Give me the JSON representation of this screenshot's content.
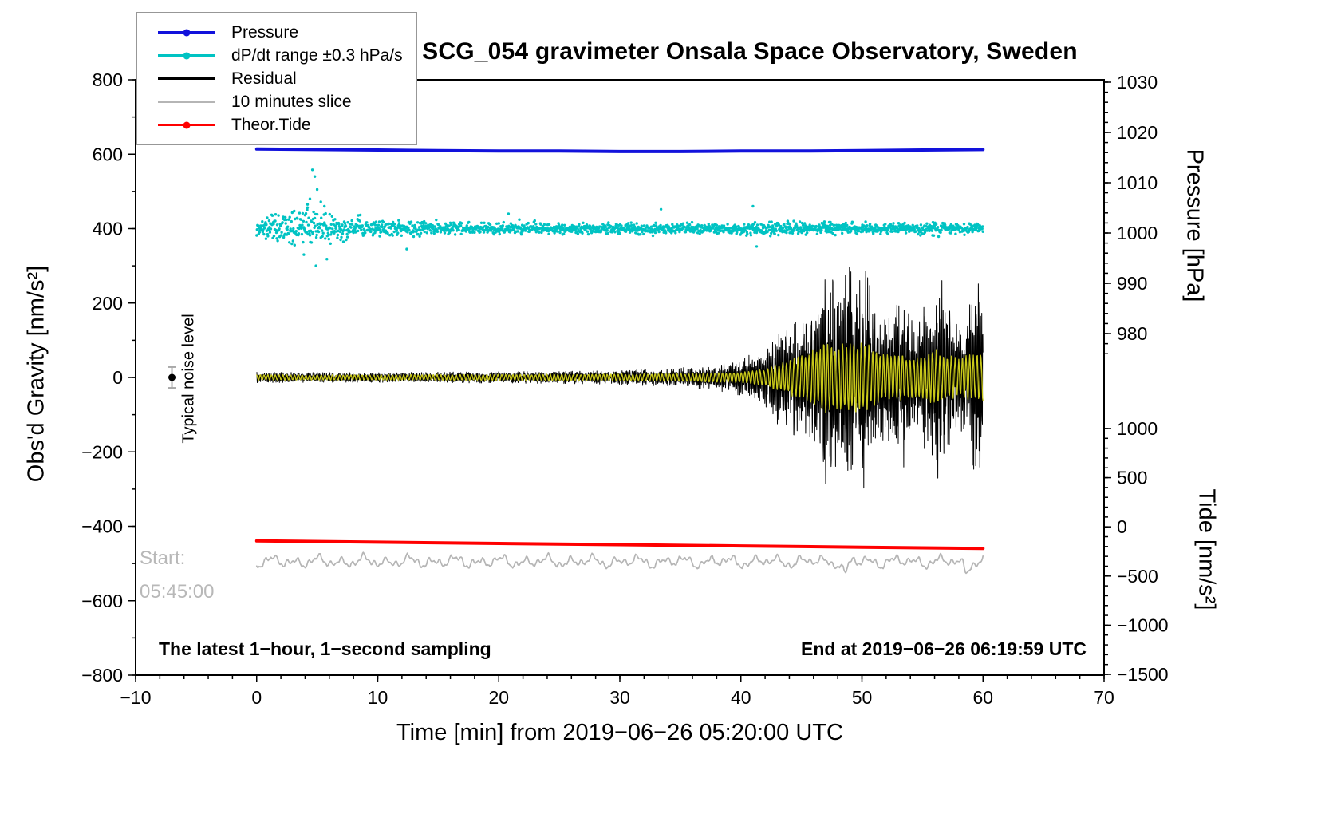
{
  "title": "SCG_054 gravimeter Onsala Space Observatory, Sweden",
  "annotations": {
    "noise_label": "Typical noise level",
    "start_label": "Start:",
    "start_time": "05:45:00",
    "sampling_note": "The latest 1−hour, 1−second sampling",
    "end_note": "End at 2019−06−26 06:19:59 UTC"
  },
  "axes": {
    "x": {
      "label": "Time [min] from 2019−06−26 05:20:00 UTC",
      "min": -10,
      "max": 70,
      "major_ticks": [
        -10,
        0,
        10,
        20,
        30,
        40,
        50,
        60,
        70
      ],
      "minor_step": 2
    },
    "y_left": {
      "label": "Obs'd Gravity [nm/s²]",
      "min": -800,
      "max": 800,
      "major_ticks": [
        -800,
        -600,
        -400,
        -200,
        0,
        200,
        400,
        600,
        800
      ],
      "minor_step": 100
    },
    "y_right_pressure": {
      "label": "Pressure [hPa]",
      "major_ticks": [
        980,
        990,
        1000,
        1010,
        1020,
        1030
      ],
      "minor_step": 2,
      "minor_range": [
        976,
        1030
      ]
    },
    "y_right_tide": {
      "label": "Tide [nm/s²]",
      "major_ticks": [
        -1500,
        -1000,
        -500,
        0,
        500,
        1000
      ],
      "minor_step": 100
    }
  },
  "legend": {
    "items": [
      {
        "label": "Pressure",
        "color": "#1212dc",
        "marker": "line-dot"
      },
      {
        "label": "dP/dt range ±0.3 hPa/s",
        "color": "#00c3c3",
        "marker": "line-dot"
      },
      {
        "label": "Residual",
        "color": "#000000",
        "marker": "line"
      },
      {
        "label": "10 minutes slice",
        "color": "#b5b5b5",
        "marker": "line"
      },
      {
        "label": "Theor.Tide",
        "color": "#ff0000",
        "marker": "line-dot"
      }
    ]
  },
  "chart_data": {
    "type": "line",
    "subtype": "multi-series line + scatter seismic/gravimeter record",
    "x_axis": "Time [min] from 2019−06−26 05:20:00 UTC",
    "x_range": [
      -10,
      70
    ],
    "data_window_minutes": [
      0,
      60
    ],
    "sampling": "1-second",
    "y_left_axis": {
      "label": "Obs'd Gravity [nm/s²]",
      "range": [
        -800,
        800
      ]
    },
    "y_right_pressure_axis": {
      "label": "Pressure [hPa]",
      "shown_ticks": [
        980,
        1030
      ]
    },
    "y_right_tide_axis": {
      "label": "Tide [nm/s²]",
      "shown_ticks": [
        -1500,
        1000
      ]
    },
    "noise_marker": {
      "x": -7,
      "y": 0,
      "error": 28,
      "label": "Typical noise level"
    },
    "series": [
      {
        "id": "slice",
        "name": "10 minutes slice",
        "scale": "gravity",
        "unit": "nm/s²",
        "color": "#b5b5b5",
        "baseline": -495,
        "amplitude": 18,
        "dips": [
          [
            48.6,
            -35
          ],
          [
            58.6,
            -25
          ]
        ]
      },
      {
        "id": "tide",
        "name": "Theor.Tide",
        "scale": "tide",
        "unit": "nm/s²",
        "color": "#ff0000",
        "width": 4,
        "points": [
          [
            0,
            -143
          ],
          [
            10,
            -156
          ],
          [
            20,
            -169
          ],
          [
            30,
            -181
          ],
          [
            40,
            -194
          ],
          [
            50,
            -207
          ],
          [
            60,
            -219
          ]
        ]
      },
      {
        "id": "dpdt",
        "name": "dP/dt range ±0.3 hPa/s",
        "scale": "gravity",
        "style": "scatter",
        "unit": "nm/s² (offset +400)",
        "color": "#00c3c3",
        "baseline": 400,
        "spread_profile": [
          [
            0,
            8
          ],
          [
            1,
            14
          ],
          [
            2,
            20
          ],
          [
            3,
            22
          ],
          [
            4,
            26
          ],
          [
            5,
            24
          ],
          [
            6,
            18
          ],
          [
            8,
            13
          ],
          [
            10,
            12
          ],
          [
            12,
            10
          ],
          [
            15,
            8
          ],
          [
            20,
            7
          ],
          [
            25,
            7
          ],
          [
            30,
            7
          ],
          [
            35,
            7
          ],
          [
            40,
            8
          ],
          [
            41,
            10
          ],
          [
            45,
            8
          ],
          [
            50,
            7
          ],
          [
            55,
            7
          ],
          [
            60,
            7
          ]
        ],
        "outliers": [
          [
            4.6,
            558
          ],
          [
            4.8,
            540
          ],
          [
            5.0,
            505
          ],
          [
            4.4,
            480
          ],
          [
            5.3,
            472
          ],
          [
            4.2,
            465
          ],
          [
            5.6,
            460
          ],
          [
            3.9,
            330
          ],
          [
            4.9,
            300
          ],
          [
            5.8,
            318
          ],
          [
            12.4,
            345
          ],
          [
            20.8,
            440
          ],
          [
            33.4,
            452
          ],
          [
            41.0,
            460
          ],
          [
            41.3,
            352
          ]
        ]
      },
      {
        "id": "pressure",
        "name": "Pressure",
        "scale": "pressure",
        "unit": "hPa",
        "color": "#1212dc",
        "width": 4,
        "points": [
          [
            0,
            1016.7
          ],
          [
            5,
            1016.6
          ],
          [
            10,
            1016.5
          ],
          [
            15,
            1016.4
          ],
          [
            20,
            1016.3
          ],
          [
            25,
            1016.3
          ],
          [
            30,
            1016.2
          ],
          [
            35,
            1016.2
          ],
          [
            40,
            1016.3
          ],
          [
            45,
            1016.3
          ],
          [
            50,
            1016.4
          ],
          [
            55,
            1016.5
          ],
          [
            60,
            1016.6
          ]
        ]
      },
      {
        "id": "residual",
        "name": "Residual",
        "scale": "gravity",
        "unit": "nm/s²",
        "color": "#000000",
        "amplitude_profile": [
          [
            0,
            13
          ],
          [
            5,
            12
          ],
          [
            10,
            12
          ],
          [
            15,
            13
          ],
          [
            20,
            14
          ],
          [
            25,
            15
          ],
          [
            28,
            16
          ],
          [
            30,
            18
          ],
          [
            32,
            20
          ],
          [
            34,
            22
          ],
          [
            36,
            26
          ],
          [
            38,
            32
          ],
          [
            40,
            45
          ],
          [
            41,
            60
          ],
          [
            42,
            80
          ],
          [
            43,
            115
          ],
          [
            44,
            135
          ],
          [
            45,
            155
          ],
          [
            46,
            205
          ],
          [
            47,
            265
          ],
          [
            47.5,
            245
          ],
          [
            48,
            230
          ],
          [
            48.5,
            255
          ],
          [
            49,
            275
          ],
          [
            49.5,
            235
          ],
          [
            50,
            295
          ],
          [
            50.5,
            245
          ],
          [
            51,
            185
          ],
          [
            52,
            145
          ],
          [
            53,
            205
          ],
          [
            53.5,
            225
          ],
          [
            54,
            150
          ],
          [
            54.5,
            115
          ],
          [
            55,
            165
          ],
          [
            55.5,
            205
          ],
          [
            56,
            245
          ],
          [
            56.5,
            255
          ],
          [
            57,
            185
          ],
          [
            57.5,
            145
          ],
          [
            58,
            125
          ],
          [
            58.5,
            145
          ],
          [
            59,
            205
          ],
          [
            59.5,
            255
          ],
          [
            60,
            235
          ]
        ]
      },
      {
        "id": "residual_smooth",
        "name": "Residual band-passed overlay",
        "scale": "gravity",
        "unit": "nm/s²",
        "color": "#c9c91a",
        "amplitude_profile": [
          [
            0,
            7
          ],
          [
            10,
            7
          ],
          [
            20,
            8
          ],
          [
            30,
            9
          ],
          [
            35,
            10
          ],
          [
            40,
            14
          ],
          [
            42,
            22
          ],
          [
            43,
            35
          ],
          [
            44,
            45
          ],
          [
            45,
            60
          ],
          [
            46,
            72
          ],
          [
            47,
            92
          ],
          [
            48,
            85
          ],
          [
            49,
            92
          ],
          [
            50,
            98
          ],
          [
            51,
            72
          ],
          [
            52,
            58
          ],
          [
            53,
            68
          ],
          [
            54,
            52
          ],
          [
            55,
            58
          ],
          [
            56,
            72
          ],
          [
            57,
            58
          ],
          [
            58,
            48
          ],
          [
            59,
            62
          ],
          [
            60,
            66
          ]
        ]
      }
    ]
  }
}
